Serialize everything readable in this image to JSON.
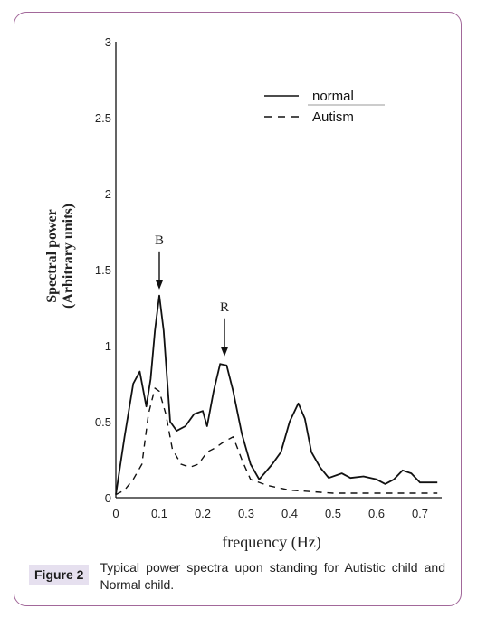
{
  "chart_data": {
    "type": "line",
    "xlabel": "frequency (Hz)",
    "ylabel": "Spectral power",
    "ylabel_units": "(Arbitrary units)",
    "xlim": [
      0,
      0.75
    ],
    "ylim": [
      0,
      3
    ],
    "x_ticks": [
      "0",
      "0.1",
      "0.2",
      "0.3",
      "0.4",
      "0.5",
      "0.6",
      "0.7"
    ],
    "y_ticks": [
      "0",
      "0.5",
      "1",
      "1.5",
      "2",
      "2.5",
      "3"
    ],
    "grid": false,
    "legend_position": "top-right",
    "series": [
      {
        "name": "normal",
        "style": "solid",
        "x": [
          0,
          0.02,
          0.04,
          0.055,
          0.07,
          0.08,
          0.09,
          0.1,
          0.11,
          0.125,
          0.14,
          0.16,
          0.18,
          0.2,
          0.21,
          0.225,
          0.24,
          0.255,
          0.27,
          0.29,
          0.31,
          0.33,
          0.345,
          0.36,
          0.38,
          0.4,
          0.42,
          0.435,
          0.45,
          0.47,
          0.49,
          0.52,
          0.54,
          0.57,
          0.6,
          0.62,
          0.64,
          0.66,
          0.68,
          0.7,
          0.72,
          0.74
        ],
        "y": [
          0.02,
          0.4,
          0.75,
          0.83,
          0.6,
          0.78,
          1.1,
          1.33,
          1.1,
          0.5,
          0.44,
          0.47,
          0.55,
          0.57,
          0.47,
          0.7,
          0.88,
          0.87,
          0.7,
          0.42,
          0.22,
          0.12,
          0.17,
          0.22,
          0.3,
          0.5,
          0.62,
          0.52,
          0.3,
          0.2,
          0.13,
          0.16,
          0.13,
          0.14,
          0.12,
          0.09,
          0.12,
          0.18,
          0.16,
          0.1,
          0.1,
          0.1
        ]
      },
      {
        "name": "Autism",
        "style": "dashed",
        "x": [
          0,
          0.02,
          0.04,
          0.06,
          0.075,
          0.09,
          0.1,
          0.115,
          0.13,
          0.15,
          0.17,
          0.19,
          0.21,
          0.23,
          0.25,
          0.27,
          0.29,
          0.31,
          0.35,
          0.4,
          0.5,
          0.6,
          0.7,
          0.74
        ],
        "y": [
          0.02,
          0.05,
          0.12,
          0.22,
          0.55,
          0.72,
          0.7,
          0.55,
          0.32,
          0.22,
          0.2,
          0.22,
          0.3,
          0.33,
          0.37,
          0.4,
          0.25,
          0.12,
          0.08,
          0.05,
          0.03,
          0.03,
          0.03,
          0.03
        ]
      }
    ],
    "annotations": [
      {
        "label": "B",
        "x": 0.1,
        "y": 1.37
      },
      {
        "label": "R",
        "x": 0.25,
        "y": 0.93
      }
    ]
  },
  "caption": {
    "figure_label": "Figure 2",
    "text": "Typical power spectra upon standing for Autistic child and Normal child."
  },
  "colors": {
    "frame_border": "#a2689a",
    "label_bg": "#e6e0ef",
    "line": "#111111"
  }
}
